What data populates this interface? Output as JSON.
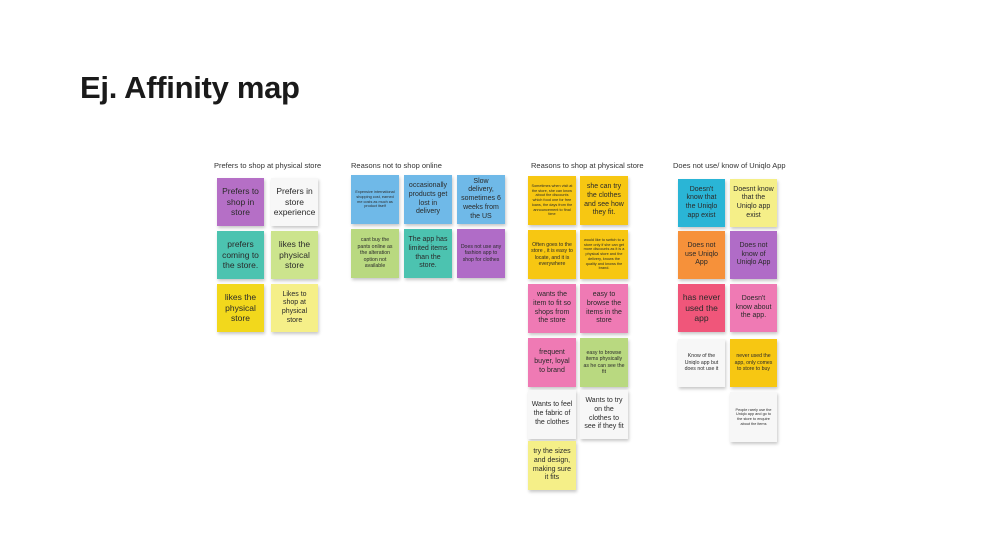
{
  "title": "Ej. Affinity map",
  "groups": [
    {
      "label": "Prefers to shop at physical store",
      "notes": [
        {
          "text": "Prefers to shop in store",
          "color": "purple"
        },
        {
          "text": "Prefers in store experience",
          "color": "white"
        },
        {
          "text": "prefers coming to the store.",
          "color": "teal"
        },
        {
          "text": "likes the physical store",
          "color": "light-green"
        },
        {
          "text": "likes the physical store",
          "color": "yellow"
        },
        {
          "text": "Likes to shop at physical store",
          "color": "light-yellow"
        }
      ]
    },
    {
      "label": "Reasons not to shop online",
      "notes": [
        {
          "text": "Expensive international shopping cost, earned me costs as much as product itself",
          "color": "blue"
        },
        {
          "text": "occasionally products get lost in delivery",
          "color": "blue"
        },
        {
          "text": "Slow delivery, sometimes 6 weeks from the US",
          "color": "blue"
        },
        {
          "text": "cant buy the pants online as the alteration option not available",
          "color": "lime"
        },
        {
          "text": "The app has limited items than the store.",
          "color": "teal"
        },
        {
          "text": "Does not use any fashion app to shop for clothes",
          "color": "violet"
        }
      ]
    },
    {
      "label": "Reasons to shop at physical store",
      "notes": [
        {
          "text": "Sometimes when visit at the store, she can know about the discounts which food one for free loans, the days from the announcement to final time",
          "color": "amber"
        },
        {
          "text": "she can try the clothes and see how they fit.",
          "color": "amber"
        },
        {
          "text": "Often goes to the store , it is easy to locate, and it is everywhere",
          "color": "amber"
        },
        {
          "text": "would like to switch to a store only if she can get more discounts as it is a physical store and the delivery, knows the quality and knows the brand.",
          "color": "amber"
        },
        {
          "text": "wants the item to fit so shops from the store",
          "color": "pink"
        },
        {
          "text": "easy to browse the items in the store",
          "color": "pink"
        },
        {
          "text": "frequent buyer, loyal to brand",
          "color": "pink"
        },
        {
          "text": "easy to browse items physically as he can see the fit",
          "color": "lime"
        },
        {
          "text": "Wants to feel the fabric of the clothes",
          "color": "white"
        },
        {
          "text": "Wants to try on the clothes to see if they fit",
          "color": "white"
        },
        {
          "text": "try the sizes and design, making sure it fits",
          "color": "light-yellow"
        }
      ]
    },
    {
      "label": "Does not use/ know of Uniqlo App",
      "notes": [
        {
          "text": "Doesn't know that the Uniqlo app exist",
          "color": "cyan"
        },
        {
          "text": "Doesnt know that the Uniqlo app exist",
          "color": "light-yellow"
        },
        {
          "text": "Does not use Uniqlo App",
          "color": "orange"
        },
        {
          "text": "Does not know of Uniqlo App",
          "color": "violet"
        },
        {
          "text": "has never used the app",
          "color": "red"
        },
        {
          "text": "Doesn't know about the app.",
          "color": "pink"
        },
        {
          "text": "Know of the Uniqlo app but does not use it",
          "color": "white"
        },
        {
          "text": "never used the app, only comes to store to buy",
          "color": "amber"
        },
        {
          "text": "People rarely use the Uniqlo app and go to the store to enquire about the items",
          "color": "white"
        }
      ]
    }
  ]
}
